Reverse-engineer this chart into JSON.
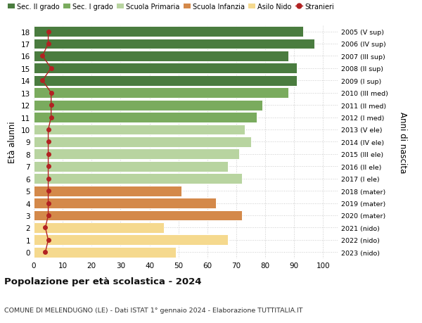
{
  "ages": [
    18,
    17,
    16,
    15,
    14,
    13,
    12,
    11,
    10,
    9,
    8,
    7,
    6,
    5,
    4,
    3,
    2,
    1,
    0
  ],
  "bar_values": [
    93,
    97,
    88,
    91,
    91,
    88,
    79,
    77,
    73,
    75,
    71,
    67,
    72,
    51,
    63,
    72,
    45,
    67,
    49
  ],
  "stranieri_values": [
    5,
    5,
    3,
    6,
    3,
    6,
    6,
    6,
    5,
    5,
    5,
    5,
    5,
    5,
    5,
    5,
    4,
    5,
    4
  ],
  "right_labels": [
    "2005 (V sup)",
    "2006 (IV sup)",
    "2007 (III sup)",
    "2008 (II sup)",
    "2009 (I sup)",
    "2010 (III med)",
    "2011 (II med)",
    "2012 (I med)",
    "2013 (V ele)",
    "2014 (IV ele)",
    "2015 (III ele)",
    "2016 (II ele)",
    "2017 (I ele)",
    "2018 (mater)",
    "2019 (mater)",
    "2020 (mater)",
    "2021 (nido)",
    "2022 (nido)",
    "2023 (nido)"
  ],
  "bar_colors": [
    "#4a7c3f",
    "#4a7c3f",
    "#4a7c3f",
    "#4a7c3f",
    "#4a7c3f",
    "#7aab5e",
    "#7aab5e",
    "#7aab5e",
    "#b8d4a0",
    "#b8d4a0",
    "#b8d4a0",
    "#b8d4a0",
    "#b8d4a0",
    "#d4894a",
    "#d4894a",
    "#d4894a",
    "#f5d98e",
    "#f5d98e",
    "#f5d98e"
  ],
  "stranieri_color": "#b22222",
  "legend_labels": [
    "Sec. II grado",
    "Sec. I grado",
    "Scuola Primaria",
    "Scuola Infanzia",
    "Asilo Nido",
    "Stranieri"
  ],
  "legend_colors": [
    "#4a7c3f",
    "#7aab5e",
    "#b8d4a0",
    "#d4894a",
    "#f5d98e",
    "#b22222"
  ],
  "ylabel": "Età alunni",
  "right_ylabel": "Anni di nascita",
  "title": "Popolazione per età scolastica - 2024",
  "subtitle": "COMUNE DI MELENDUGNO (LE) - Dati ISTAT 1° gennaio 2024 - Elaborazione TUTTITALIA.IT",
  "xlim": [
    0,
    105
  ],
  "ylim": [
    -0.5,
    18.5
  ],
  "background_color": "#ffffff",
  "grid_color": "#cccccc"
}
